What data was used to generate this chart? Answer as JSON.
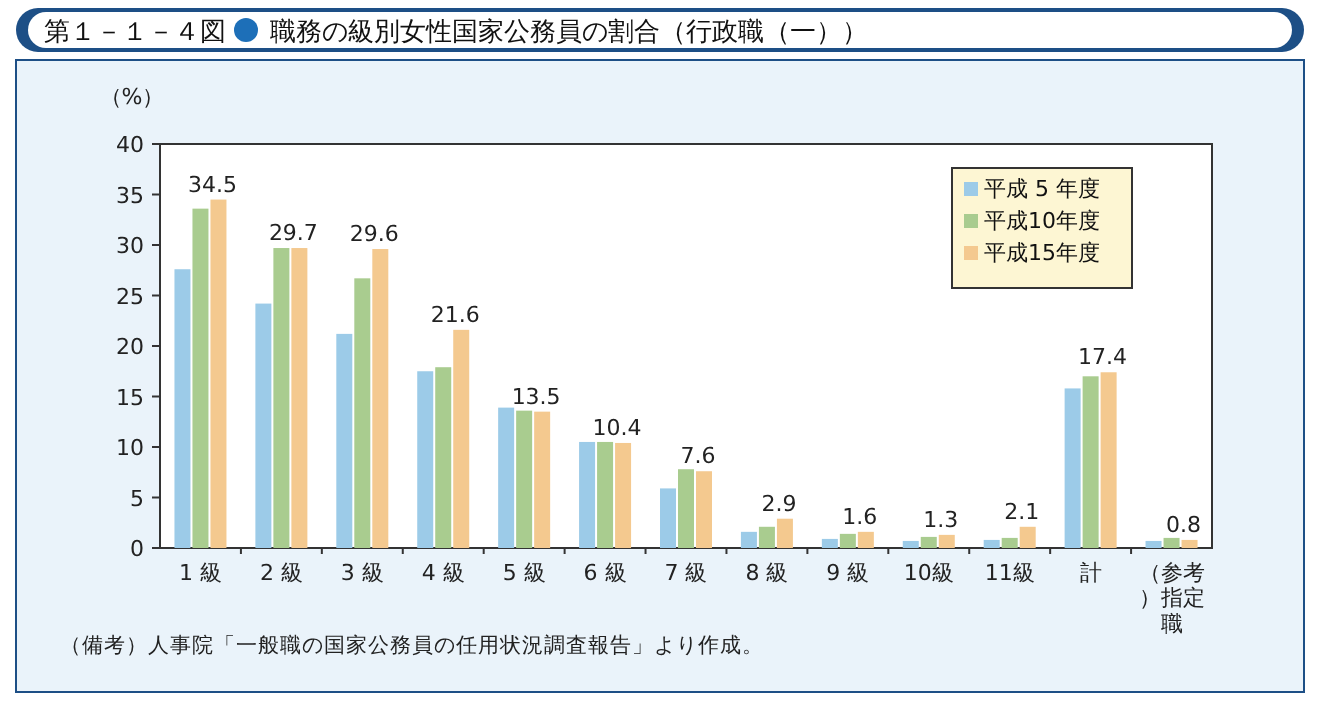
{
  "chart_data": {
    "type": "bar",
    "title": "第１－１－４図",
    "subtitle": "職務の級別女性国家公務員の割合（行政職（一））",
    "ylabel": "（%）",
    "annotations": [
      "（備考）人事院「一般職の国家公務員の任用状況調査報告」より作成。"
    ],
    "categories": [
      "1 級",
      "2 級",
      "3 級",
      "4 級",
      "5 級",
      "6 級",
      "7 級",
      "8 級",
      "9 級",
      "10級",
      "11級",
      "計",
      "（参考）指定職"
    ],
    "series": [
      {
        "name": "平成 5 年度",
        "color": "#9ccbe8",
        "values": [
          27.6,
          24.2,
          21.2,
          17.5,
          13.9,
          10.5,
          5.9,
          1.6,
          0.9,
          0.7,
          0.8,
          15.8,
          0.7
        ]
      },
      {
        "name": "平成10年度",
        "color": "#a9cc8f",
        "values": [
          33.6,
          29.7,
          26.7,
          17.9,
          13.6,
          10.5,
          7.8,
          2.1,
          1.4,
          1.1,
          1.0,
          17.0,
          1.0
        ]
      },
      {
        "name": "平成15年度",
        "color": "#f4c98f",
        "values": [
          34.5,
          29.7,
          29.6,
          21.6,
          13.5,
          10.4,
          7.6,
          2.9,
          1.6,
          1.3,
          2.1,
          17.4,
          0.8
        ],
        "value_labels": [
          "34.5",
          "29.7",
          "29.6",
          "21.6",
          "13.5",
          "10.4",
          "7.6",
          "2.9",
          "1.6",
          "1.3",
          "2.1",
          "17.4",
          "0.8"
        ]
      }
    ],
    "ylim": [
      0,
      40
    ],
    "yticks": [
      0,
      5,
      10,
      15,
      20,
      25,
      30,
      35,
      40
    ],
    "legend": "top right"
  }
}
